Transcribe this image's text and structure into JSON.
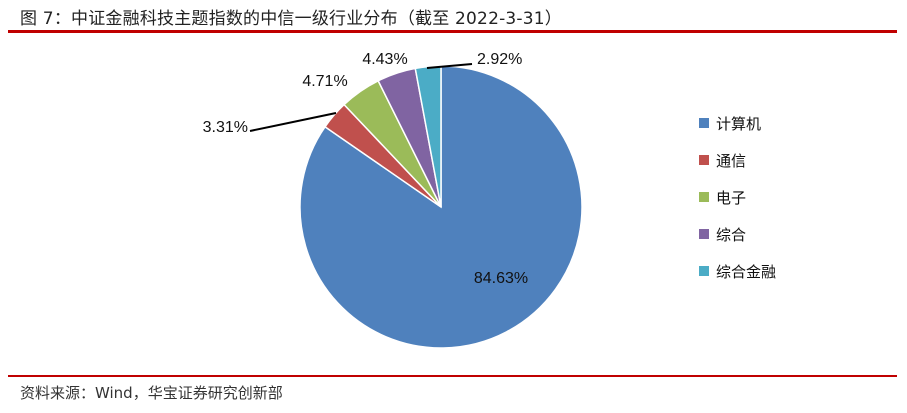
{
  "title": "图 7：中证金融科技主题指数的中信一级行业分布（截至 2022-3-31）",
  "source": "资料来源：Wind，华宝证券研究创新部",
  "chart_data": {
    "type": "pie",
    "categories": [
      "计算机",
      "通信",
      "电子",
      "综合",
      "综合金融"
    ],
    "values": [
      84.63,
      3.31,
      4.71,
      4.43,
      2.92
    ],
    "labels": [
      "84.63%",
      "3.31%",
      "4.71%",
      "4.43%",
      "2.92%"
    ],
    "colors": [
      "#4f81bd",
      "#c0504d",
      "#9bbb59",
      "#8064a2",
      "#4bacc6"
    ],
    "legend_position": "right"
  }
}
